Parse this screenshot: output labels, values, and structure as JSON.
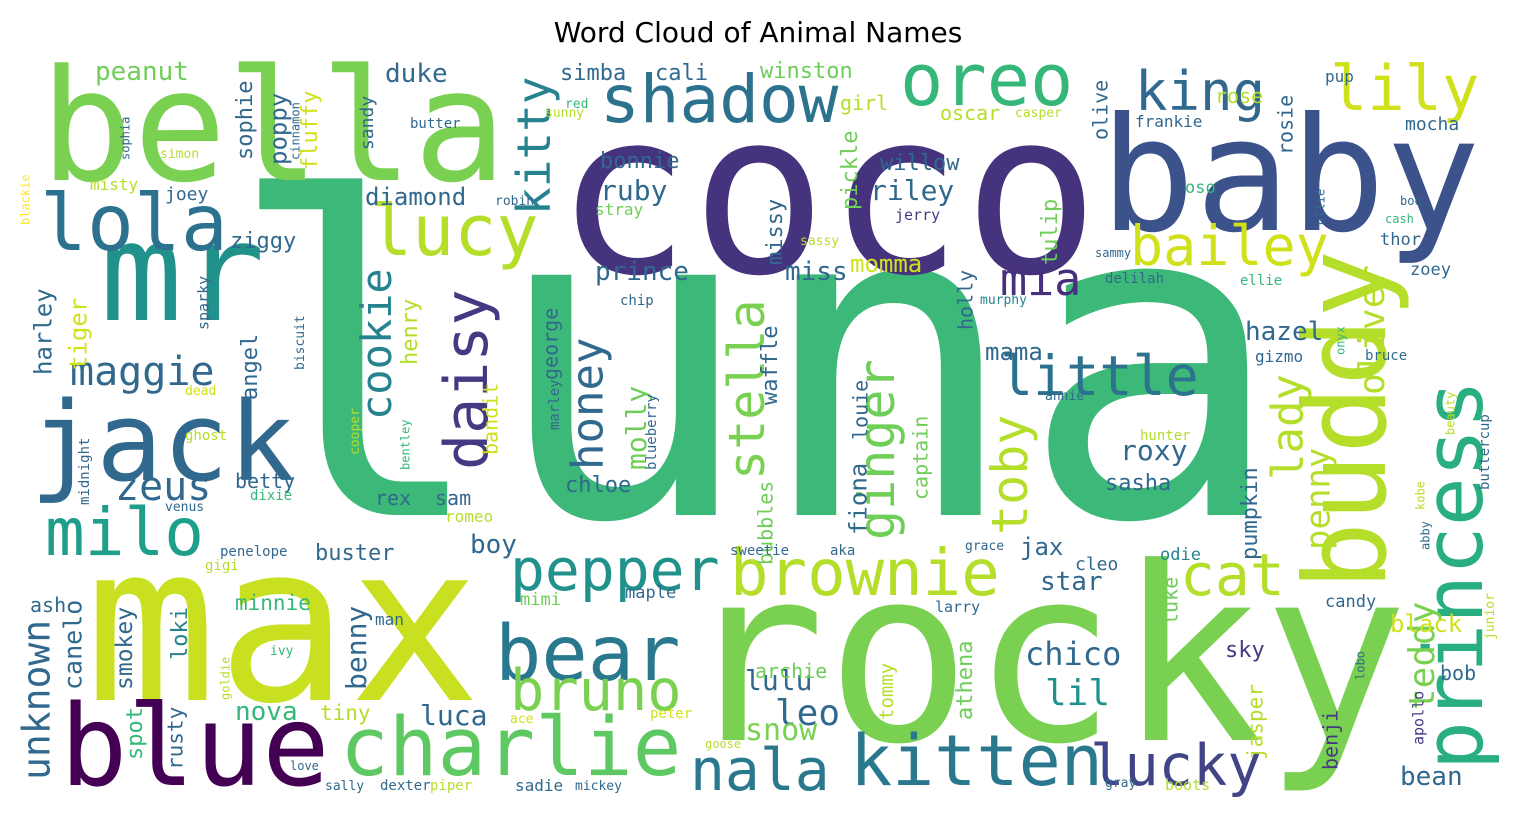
{
  "chart_data": {
    "type": "wordcloud",
    "title": "Word Cloud of Animal Names",
    "words": [
      {
        "text": "luna",
        "color": "#3cb878"
      },
      {
        "text": "coco",
        "color": "#46337e"
      },
      {
        "text": "rocky",
        "color": "#7ad151"
      },
      {
        "text": "max",
        "color": "#c8e020"
      },
      {
        "text": "bella",
        "color": "#7ad151"
      },
      {
        "text": "baby",
        "color": "#3b528b"
      },
      {
        "text": "mr",
        "color": "#21918c"
      },
      {
        "text": "jack",
        "color": "#31688e"
      },
      {
        "text": "blue",
        "color": "#440154"
      },
      {
        "text": "charlie",
        "color": "#5ec962"
      },
      {
        "text": "buddy",
        "color": "#b5de2b"
      },
      {
        "text": "princess",
        "color": "#29af7f"
      },
      {
        "text": "kitten",
        "color": "#2a788e"
      },
      {
        "text": "lucky",
        "color": "#414487"
      },
      {
        "text": "nala",
        "color": "#2a788e"
      },
      {
        "text": "bear",
        "color": "#2a788e"
      },
      {
        "text": "bruno",
        "color": "#7ad151"
      },
      {
        "text": "pepper",
        "color": "#21918c"
      },
      {
        "text": "brownie",
        "color": "#b5de2b"
      },
      {
        "text": "cat",
        "color": "#b5de2b"
      },
      {
        "text": "shadow",
        "color": "#2c728e"
      },
      {
        "text": "oreo",
        "color": "#35b779"
      },
      {
        "text": "king",
        "color": "#31688e"
      },
      {
        "text": "lily",
        "color": "#d0e11c"
      },
      {
        "text": "lucy",
        "color": "#b5de2b"
      },
      {
        "text": "lola",
        "color": "#2c728e"
      },
      {
        "text": "bailey",
        "color": "#d0e11c"
      },
      {
        "text": "mia",
        "color": "#472f7d"
      },
      {
        "text": "daisy",
        "color": "#443a83"
      },
      {
        "text": "cookie",
        "color": "#26828e"
      },
      {
        "text": "kitty",
        "color": "#26828e"
      },
      {
        "text": "little",
        "color": "#2c728e"
      },
      {
        "text": "milo",
        "color": "#1f9e89"
      },
      {
        "text": "zeus",
        "color": "#31688e"
      },
      {
        "text": "maggie",
        "color": "#31688e"
      },
      {
        "text": "honey",
        "color": "#31688e"
      },
      {
        "text": "stella",
        "color": "#7ad151"
      },
      {
        "text": "ginger",
        "color": "#6ece58"
      },
      {
        "text": "toby",
        "color": "#b5de2b"
      },
      {
        "text": "lady",
        "color": "#b5de2b"
      },
      {
        "text": "penny",
        "color": "#b5de2b"
      },
      {
        "text": "teddy",
        "color": "#7ad151"
      },
      {
        "text": "oliver",
        "color": "#b5de2b"
      },
      {
        "text": "lil",
        "color": "#21918c"
      },
      {
        "text": "chico",
        "color": "#31688e"
      },
      {
        "text": "leo",
        "color": "#31688e"
      },
      {
        "text": "snow",
        "color": "#7ad151"
      },
      {
        "text": "lulu",
        "color": "#31688e"
      },
      {
        "text": "luca",
        "color": "#31688e"
      },
      {
        "text": "nova",
        "color": "#35b779"
      },
      {
        "text": "benny",
        "color": "#31688e"
      },
      {
        "text": "loki",
        "color": "#26828e"
      },
      {
        "text": "unknown",
        "color": "#31688e"
      },
      {
        "text": "canelo",
        "color": "#31688e"
      },
      {
        "text": "smokey",
        "color": "#31688e"
      },
      {
        "text": "spot",
        "color": "#35b779"
      },
      {
        "text": "rusty",
        "color": "#31688e"
      },
      {
        "text": "tiny",
        "color": "#b5de2b"
      },
      {
        "text": "minnie",
        "color": "#35b779"
      },
      {
        "text": "man",
        "color": "#31688e"
      },
      {
        "text": "mimi",
        "color": "#6ece58"
      },
      {
        "text": "maple",
        "color": "#31688e"
      },
      {
        "text": "archie",
        "color": "#6ece58"
      },
      {
        "text": "athena",
        "color": "#6ece58"
      },
      {
        "text": "tommy",
        "color": "#b5de2b"
      },
      {
        "text": "jasper",
        "color": "#b5de2b"
      },
      {
        "text": "luke",
        "color": "#6ece58"
      },
      {
        "text": "candy",
        "color": "#31688e"
      },
      {
        "text": "black",
        "color": "#d0e11c"
      },
      {
        "text": "sky",
        "color": "#443a83"
      },
      {
        "text": "bob",
        "color": "#31688e"
      },
      {
        "text": "bean",
        "color": "#31688e"
      },
      {
        "text": "benji",
        "color": "#443a83"
      },
      {
        "text": "apollo",
        "color": "#443a83"
      },
      {
        "text": "lobo",
        "color": "#31688e"
      },
      {
        "text": "junior",
        "color": "#b5de2b"
      },
      {
        "text": "pumpkin",
        "color": "#31688e"
      },
      {
        "text": "odie",
        "color": "#26828e"
      },
      {
        "text": "cleo",
        "color": "#31688e"
      },
      {
        "text": "star",
        "color": "#31688e"
      },
      {
        "text": "jax",
        "color": "#31688e"
      },
      {
        "text": "larry",
        "color": "#31688e"
      },
      {
        "text": "grace",
        "color": "#31688e"
      },
      {
        "text": "sasha",
        "color": "#31688e"
      },
      {
        "text": "roxy",
        "color": "#31688e"
      },
      {
        "text": "hazel",
        "color": "#31688e"
      },
      {
        "text": "gizmo",
        "color": "#31688e"
      },
      {
        "text": "bruce",
        "color": "#31688e"
      },
      {
        "text": "onyx",
        "color": "#35b779"
      },
      {
        "text": "zoey",
        "color": "#31688e"
      },
      {
        "text": "ellie",
        "color": "#35b779"
      },
      {
        "text": "thor",
        "color": "#31688e"
      },
      {
        "text": "cash",
        "color": "#35b779"
      },
      {
        "text": "boo",
        "color": "#31688e"
      },
      {
        "text": "ollie",
        "color": "#31688e"
      },
      {
        "text": "oso",
        "color": "#35b779"
      },
      {
        "text": "frankie",
        "color": "#31688e"
      },
      {
        "text": "rosie",
        "color": "#31688e"
      },
      {
        "text": "rose",
        "color": "#b5de2b"
      },
      {
        "text": "mocha",
        "color": "#31688e"
      },
      {
        "text": "pup",
        "color": "#31688e"
      },
      {
        "text": "olive",
        "color": "#31688e"
      },
      {
        "text": "casper",
        "color": "#b5de2b"
      },
      {
        "text": "oscar",
        "color": "#b5de2b"
      },
      {
        "text": "winston",
        "color": "#6ece58"
      },
      {
        "text": "girl",
        "color": "#b5de2b"
      },
      {
        "text": "willow",
        "color": "#31688e"
      },
      {
        "text": "riley",
        "color": "#31688e"
      },
      {
        "text": "jerry",
        "color": "#443a83"
      },
      {
        "text": "tulip",
        "color": "#6ece58"
      },
      {
        "text": "pickle",
        "color": "#6ece58"
      },
      {
        "text": "missy",
        "color": "#31688e"
      },
      {
        "text": "sassy",
        "color": "#b5de2b"
      },
      {
        "text": "momma",
        "color": "#d0e11c"
      },
      {
        "text": "miss",
        "color": "#31688e"
      },
      {
        "text": "holly",
        "color": "#31688e"
      },
      {
        "text": "murphy",
        "color": "#26828e"
      },
      {
        "text": "delilah",
        "color": "#31688e"
      },
      {
        "text": "sammy",
        "color": "#31688e"
      },
      {
        "text": "mama",
        "color": "#31688e"
      },
      {
        "text": "ruby",
        "color": "#31688e"
      },
      {
        "text": "bonnie",
        "color": "#31688e"
      },
      {
        "text": "simba",
        "color": "#31688e"
      },
      {
        "text": "cali",
        "color": "#31688e"
      },
      {
        "text": "stray",
        "color": "#6ece58"
      },
      {
        "text": "sunny",
        "color": "#b5de2b"
      },
      {
        "text": "red",
        "color": "#35b779"
      },
      {
        "text": "prince",
        "color": "#31688e"
      },
      {
        "text": "chip",
        "color": "#31688e"
      },
      {
        "text": "molly",
        "color": "#6ece58"
      },
      {
        "text": "george",
        "color": "#31688e"
      },
      {
        "text": "marley",
        "color": "#31688e"
      },
      {
        "text": "blueberry",
        "color": "#31688e"
      },
      {
        "text": "chloe",
        "color": "#31688e"
      },
      {
        "text": "waffle",
        "color": "#31688e"
      },
      {
        "text": "bubbles",
        "color": "#6ece58"
      },
      {
        "text": "louie",
        "color": "#31688e"
      },
      {
        "text": "fiona",
        "color": "#31688e"
      },
      {
        "text": "captain",
        "color": "#6ece58"
      },
      {
        "text": "sweetie",
        "color": "#31688e"
      },
      {
        "text": "aka",
        "color": "#31688e"
      },
      {
        "text": "hunter",
        "color": "#b5de2b"
      },
      {
        "text": "annie",
        "color": "#31688e"
      },
      {
        "text": "bandit",
        "color": "#d0e11c"
      },
      {
        "text": "sam",
        "color": "#31688e"
      },
      {
        "text": "rex",
        "color": "#31688e"
      },
      {
        "text": "boy",
        "color": "#31688e"
      },
      {
        "text": "romeo",
        "color": "#b5de2b"
      },
      {
        "text": "buster",
        "color": "#31688e"
      },
      {
        "text": "betty",
        "color": "#31688e"
      },
      {
        "text": "dixie",
        "color": "#35b779"
      },
      {
        "text": "venus",
        "color": "#31688e"
      },
      {
        "text": "penelope",
        "color": "#31688e"
      },
      {
        "text": "gigi",
        "color": "#b5de2b"
      },
      {
        "text": "ash",
        "color": "#31688e"
      },
      {
        "text": "cooper",
        "color": "#b5de2b"
      },
      {
        "text": "bentley",
        "color": "#35b779"
      },
      {
        "text": "angel",
        "color": "#31688e"
      },
      {
        "text": "henry",
        "color": "#b5de2b"
      },
      {
        "text": "diamond",
        "color": "#31688e"
      },
      {
        "text": "duke",
        "color": "#31688e"
      },
      {
        "text": "robin",
        "color": "#31688e"
      },
      {
        "text": "ziggy",
        "color": "#31688e"
      },
      {
        "text": "sparky",
        "color": "#31688e"
      },
      {
        "text": "harley",
        "color": "#31688e"
      },
      {
        "text": "tiger",
        "color": "#d0e11c"
      },
      {
        "text": "midnight",
        "color": "#31688e"
      },
      {
        "text": "ghost",
        "color": "#b5de2b"
      },
      {
        "text": "dead",
        "color": "#d0e11c"
      },
      {
        "text": "biscuit",
        "color": "#31688e"
      },
      {
        "text": "peanut",
        "color": "#6ece58"
      },
      {
        "text": "sophie",
        "color": "#31688e"
      },
      {
        "text": "poppy",
        "color": "#31688e"
      },
      {
        "text": "fluffy",
        "color": "#d0e11c"
      },
      {
        "text": "sandy",
        "color": "#31688e"
      },
      {
        "text": "butter",
        "color": "#31688e"
      },
      {
        "text": "cinnamon",
        "color": "#31688e"
      },
      {
        "text": "sophia",
        "color": "#31688e"
      },
      {
        "text": "simon",
        "color": "#b5de2b"
      },
      {
        "text": "blackie",
        "color": "#fde725"
      },
      {
        "text": "misty",
        "color": "#b5de2b"
      },
      {
        "text": "joey",
        "color": "#31688e"
      },
      {
        "text": "goldie",
        "color": "#b5de2b"
      },
      {
        "text": "ivy",
        "color": "#35b779"
      },
      {
        "text": "peter",
        "color": "#d0e11c"
      },
      {
        "text": "ace",
        "color": "#d0e11c"
      },
      {
        "text": "goose",
        "color": "#b5de2b"
      },
      {
        "text": "love",
        "color": "#31688e"
      },
      {
        "text": "sally",
        "color": "#31688e"
      },
      {
        "text": "dexter",
        "color": "#31688e"
      },
      {
        "text": "piper",
        "color": "#b5de2b"
      },
      {
        "text": "sadie",
        "color": "#31688e"
      },
      {
        "text": "mickey",
        "color": "#31688e"
      },
      {
        "text": "gray",
        "color": "#31688e"
      },
      {
        "text": "boots",
        "color": "#b5de2b"
      },
      {
        "text": "kobe",
        "color": "#b5de2b"
      },
      {
        "text": "abby",
        "color": "#31688e"
      },
      {
        "text": "beauty",
        "color": "#b5de2b"
      },
      {
        "text": "buttercup",
        "color": "#31688e"
      }
    ]
  }
}
